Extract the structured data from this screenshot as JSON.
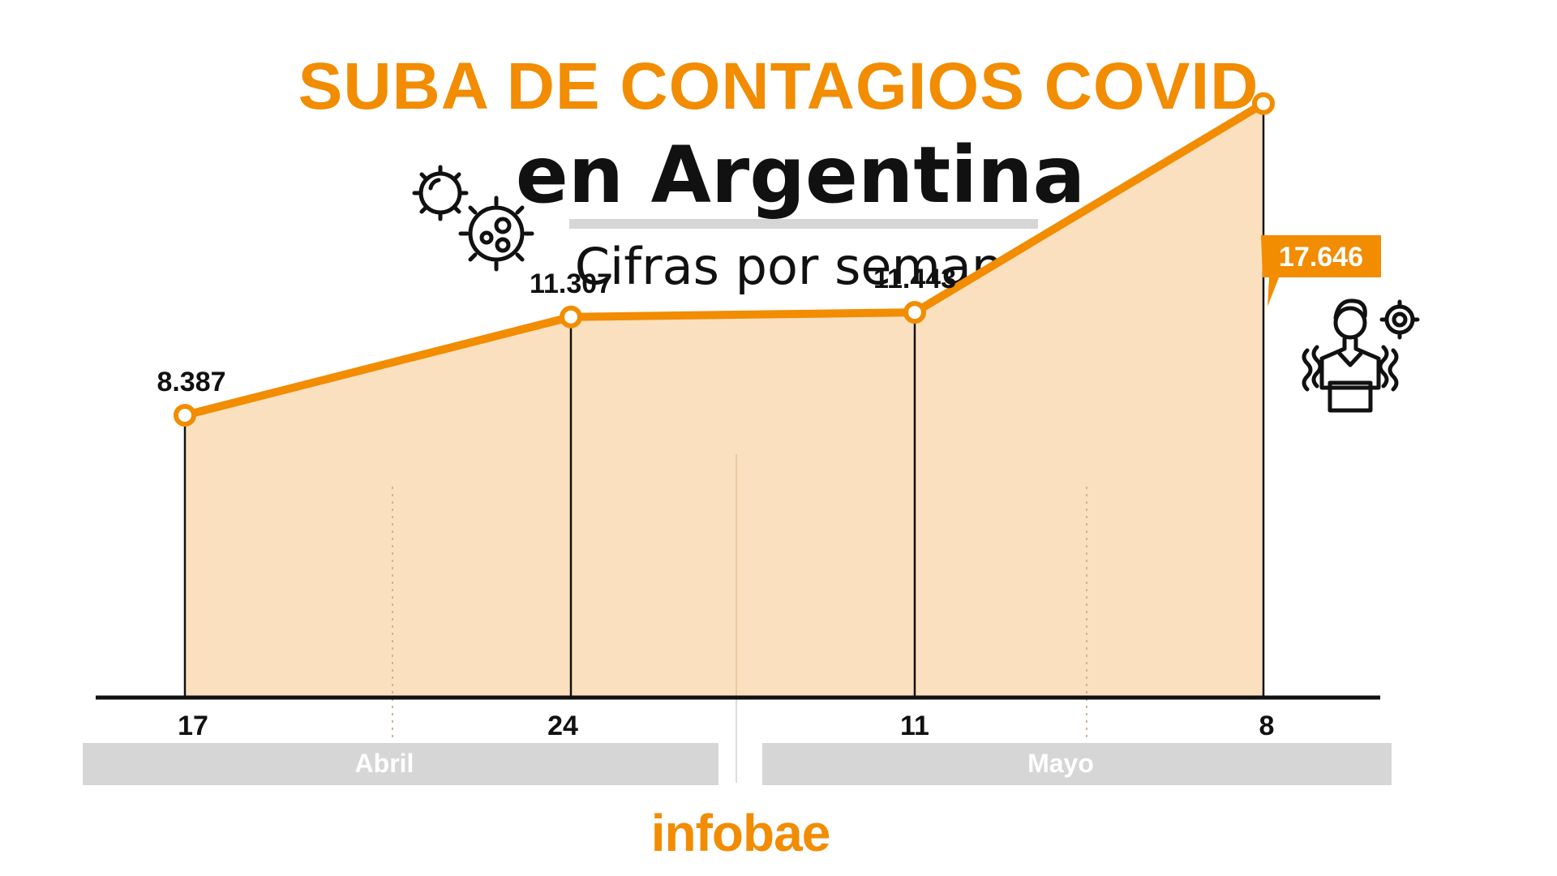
{
  "headline": {
    "title": "SUBA DE CONTAGIOS COVID",
    "subtitle": "en Argentina",
    "period": "Cifras por semana"
  },
  "brand": {
    "logo": "infobae",
    "color": "#f28c00"
  },
  "icons": {
    "virus": "virus-icon",
    "person": "sick-person-icon"
  },
  "chart_data": {
    "type": "area",
    "x": [
      "17",
      "24",
      "11",
      "8"
    ],
    "values": [
      8387,
      11307,
      11443,
      17646
    ],
    "value_labels": [
      "8.387",
      "11.307",
      "11.443",
      "17.646"
    ],
    "month_groups": [
      {
        "label": "Abril",
        "ticks": [
          "17",
          "24"
        ]
      },
      {
        "label": "Mayo",
        "ticks": [
          "11",
          "8"
        ]
      }
    ],
    "ylim": [
      0,
      20000
    ],
    "highlight_last": true,
    "colors": {
      "line": "#f28c00",
      "fill": "#fbe0bf",
      "axis": "#111111",
      "month_band": "#d6d6d6"
    }
  }
}
